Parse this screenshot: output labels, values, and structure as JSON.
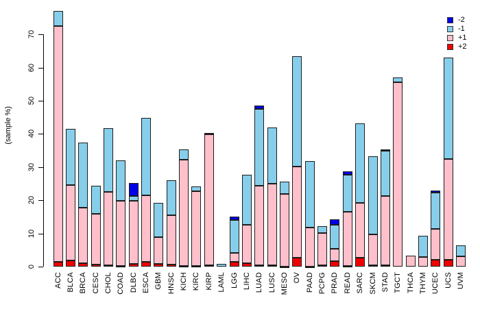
{
  "chart_data": {
    "type": "bar",
    "stacked": true,
    "title": "",
    "xlabel": "",
    "ylabel": "(sample %)",
    "ylim": [
      0,
      77.5
    ],
    "yticks": [
      0,
      10,
      20,
      30,
      40,
      50,
      60,
      70
    ],
    "grid": false,
    "legend_position": "top-right",
    "legend_order": [
      "-2",
      "-1",
      "+1",
      "+2"
    ],
    "colors": {
      "-2": "#0000E6",
      "-1": "#87CEEB",
      "+1": "#FFC0CB",
      "+2": "#EE0000"
    },
    "stack_order_bottom_to_top": [
      "+2",
      "+1",
      "-1",
      "-2"
    ],
    "categories": [
      "ACC",
      "BLCA",
      "BRCA",
      "CESC",
      "CHOL",
      "COAD",
      "DLBC",
      "ESCA",
      "GBM",
      "HNSC",
      "KICH",
      "KIRC",
      "KIRP",
      "LAML",
      "LGG",
      "LIHC",
      "LUAD",
      "LUSC",
      "MESO",
      "OV",
      "PAAD",
      "PCPG",
      "PRAD",
      "READ",
      "SARC",
      "SKCM",
      "STAD",
      "TGCT",
      "THCA",
      "THYM",
      "UCEC",
      "UCS",
      "UVM"
    ],
    "series": [
      {
        "name": "+2",
        "color": "#EE0000",
        "values": [
          1.5,
          1.9,
          1.0,
          0.6,
          0.4,
          0.3,
          0.8,
          1.4,
          0.9,
          0.7,
          0.2,
          0.3,
          0.5,
          0,
          1.4,
          1.1,
          0.4,
          0.4,
          0.1,
          2.6,
          0.1,
          0.5,
          1.6,
          0.2,
          2.6,
          0.5,
          0.5,
          0,
          0,
          0,
          2.1,
          2.1,
          0
        ]
      },
      {
        "name": "+1",
        "color": "#FFC0CB",
        "values": [
          71.1,
          22.7,
          16.8,
          15.4,
          22.1,
          19.6,
          19.0,
          20.1,
          8.0,
          14.7,
          32.0,
          22.4,
          39.3,
          0,
          2.7,
          11.6,
          23.9,
          24.5,
          21.9,
          27.6,
          11.7,
          9.7,
          3.7,
          16.4,
          16.6,
          9.3,
          20.8,
          55.6,
          3.3,
          2.9,
          9.2,
          30.4,
          3.0
        ]
      },
      {
        "name": "-1",
        "color": "#87CEEB",
        "values": [
          4.5,
          16.9,
          19.5,
          8.3,
          19.3,
          12.1,
          1.5,
          23.4,
          10.3,
          10.7,
          3.1,
          1.5,
          0.5,
          0.8,
          9.9,
          15.0,
          23.2,
          17.0,
          3.6,
          33.3,
          20.0,
          2.0,
          7.3,
          11.0,
          24.0,
          23.5,
          13.6,
          1.5,
          0,
          6.3,
          11.0,
          30.5,
          3.5
        ]
      },
      {
        "name": "-2",
        "color": "#0000E6",
        "values": [
          0,
          0,
          0,
          0,
          0,
          0,
          4.0,
          0,
          0,
          0,
          0,
          0,
          0,
          0,
          1.1,
          0,
          1.0,
          0,
          0,
          0,
          0,
          0,
          1.7,
          1.2,
          0,
          0,
          0.4,
          0,
          0,
          0,
          0.7,
          0,
          0
        ]
      }
    ],
    "totals": [
      77.1,
      41.5,
      37.3,
      24.3,
      41.8,
      32.0,
      25.3,
      44.9,
      19.2,
      26.1,
      35.3,
      24.2,
      40.3,
      0.8,
      15.1,
      27.7,
      48.5,
      41.9,
      25.6,
      63.5,
      31.8,
      12.2,
      14.3,
      28.8,
      43.2,
      33.3,
      35.3,
      57.1,
      3.3,
      9.2,
      23.0,
      63.0,
      6.5
    ]
  }
}
